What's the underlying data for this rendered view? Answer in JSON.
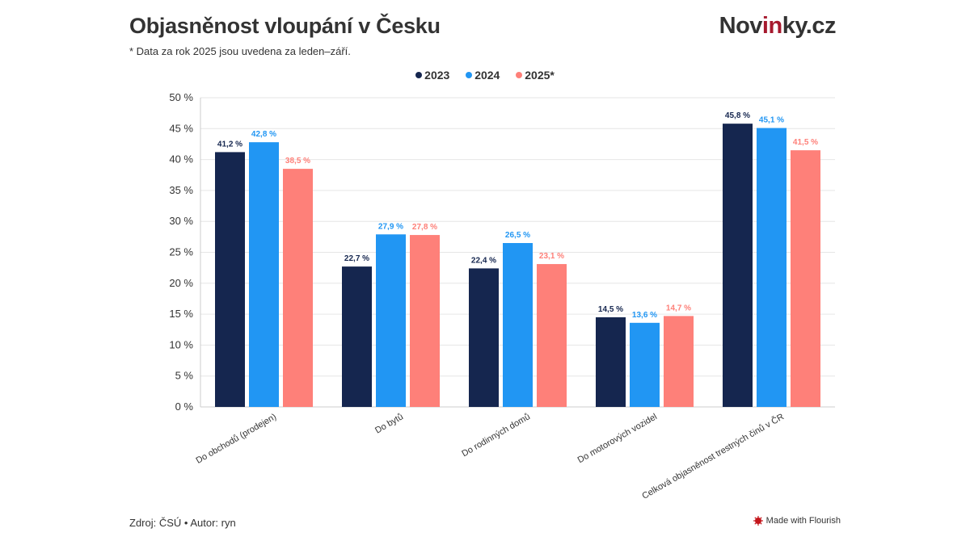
{
  "header": {
    "title": "Objasněnost vloupání v Česku",
    "subtitle": "* Data za rok 2025 jsou uvedena za leden–září.",
    "logo": {
      "pre": "Nov",
      "accent": "in",
      "post": "ky.cz"
    }
  },
  "footer": {
    "source": "Zdroj: ČSÚ • Autor: ryn",
    "flourish": "Made with Flourish"
  },
  "chart_data": {
    "type": "bar",
    "categories": [
      "Do obchodů (prodejen)",
      "Do bytů",
      "Do rodinných domů",
      "Do motorových vozidel",
      "Celková objasněnost trestných činů v ČR"
    ],
    "series": [
      {
        "name": "2023",
        "color": "#15264f",
        "values": [
          41.2,
          22.7,
          22.4,
          14.5,
          45.8
        ],
        "labels": [
          "41,2 %",
          "22,7 %",
          "22,4 %",
          "14,5 %",
          "45,8 %"
        ]
      },
      {
        "name": "2024",
        "color": "#2196f3",
        "values": [
          42.8,
          27.9,
          26.5,
          13.6,
          45.1
        ],
        "labels": [
          "42,8 %",
          "27,9 %",
          "26,5 %",
          "13,6 %",
          "45,1 %"
        ]
      },
      {
        "name": "2025*",
        "color": "#fe8079",
        "values": [
          38.5,
          27.8,
          23.1,
          14.7,
          41.5
        ],
        "labels": [
          "38,5 %",
          "27,8 %",
          "23,1 %",
          "14,7 %",
          "41,5 %"
        ]
      }
    ],
    "yticks": [
      "0 %",
      "5 %",
      "10 %",
      "15 %",
      "20 %",
      "25 %",
      "30 %",
      "35 %",
      "40 %",
      "45 %",
      "50 %"
    ],
    "ylim": [
      0,
      50
    ],
    "grid": true,
    "legend": "top-center"
  }
}
